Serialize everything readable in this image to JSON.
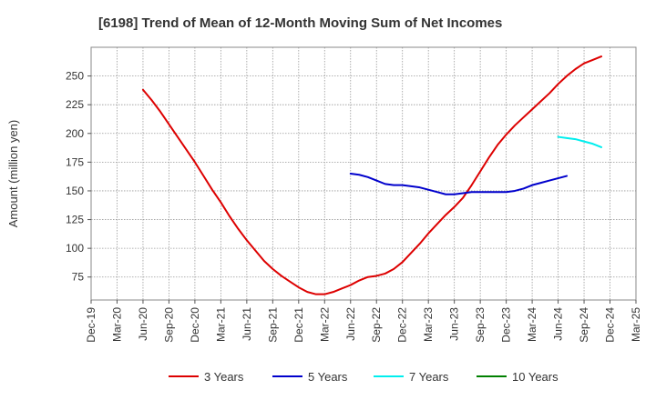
{
  "chart_data": {
    "type": "line",
    "title": "[6198]  Trend of Mean of 12-Month Moving Sum of Net Incomes",
    "xlabel": "",
    "ylabel": "Amount (million yen)",
    "ylim": [
      55,
      275
    ],
    "yticks": [
      75,
      100,
      125,
      150,
      175,
      200,
      225,
      250
    ],
    "xticks": [
      "Dec-19",
      "Mar-20",
      "Jun-20",
      "Sep-20",
      "Dec-20",
      "Mar-21",
      "Jun-21",
      "Sep-21",
      "Dec-21",
      "Mar-22",
      "Jun-22",
      "Sep-22",
      "Dec-22",
      "Mar-23",
      "Jun-23",
      "Sep-23",
      "Dec-23",
      "Mar-24",
      "Jun-24",
      "Sep-24",
      "Dec-24",
      "Mar-25"
    ],
    "grid": true,
    "legend_position": "bottom",
    "series": [
      {
        "name": "3 Years",
        "color": "#dd0000",
        "start_index": 6,
        "values": [
          238,
          229,
          219,
          208,
          197,
          186,
          175,
          163,
          151,
          140,
          128,
          117,
          107,
          98,
          89,
          82,
          76,
          71,
          66,
          62,
          60,
          60,
          62,
          65,
          68,
          72,
          75,
          76,
          78,
          82,
          88,
          96,
          104,
          113,
          121,
          129,
          136,
          144,
          155,
          167,
          179,
          190,
          199,
          207,
          214,
          221,
          228,
          235,
          243,
          250,
          256,
          261,
          264,
          267
        ]
      },
      {
        "name": "5 Years",
        "color": "#0000cc",
        "start_index": 30,
        "values": [
          165,
          164,
          162,
          159,
          156,
          155,
          155,
          154,
          153,
          151,
          149,
          147,
          147,
          148,
          149,
          149,
          149,
          149,
          149,
          150,
          152,
          155,
          157,
          159,
          161,
          163
        ]
      },
      {
        "name": "7 Years",
        "color": "#00eeee",
        "start_index": 54,
        "values": [
          197,
          196,
          195,
          193,
          191,
          188
        ]
      },
      {
        "name": "10 Years",
        "color": "#008000",
        "start_index": 0,
        "values": []
      }
    ]
  }
}
